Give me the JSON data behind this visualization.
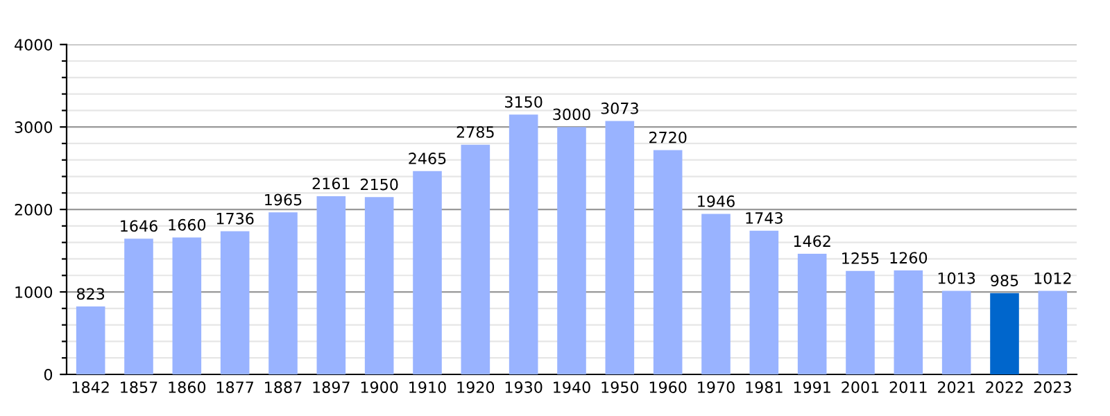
{
  "chart_data": {
    "type": "bar",
    "categories": [
      "1842",
      "1857",
      "1860",
      "1877",
      "1887",
      "1897",
      "1900",
      "1910",
      "1920",
      "1930",
      "1940",
      "1950",
      "1960",
      "1970",
      "1981",
      "1991",
      "2001",
      "2011",
      "2021",
      "2022",
      "2023"
    ],
    "values": [
      823,
      1646,
      1660,
      1736,
      1965,
      2161,
      2150,
      2465,
      2785,
      3150,
      3000,
      3073,
      2720,
      1946,
      1743,
      1462,
      1255,
      1260,
      1013,
      985,
      1012
    ],
    "colors": [
      "#99b3ff",
      "#99b3ff",
      "#99b3ff",
      "#99b3ff",
      "#99b3ff",
      "#99b3ff",
      "#99b3ff",
      "#99b3ff",
      "#99b3ff",
      "#99b3ff",
      "#99b3ff",
      "#99b3ff",
      "#99b3ff",
      "#99b3ff",
      "#99b3ff",
      "#99b3ff",
      "#99b3ff",
      "#99b3ff",
      "#99b3ff",
      "#0066cc",
      "#99b3ff"
    ],
    "ylim": [
      0,
      4000
    ],
    "yticks": [
      0,
      {
        "value": 200,
        "label": null
      },
      {
        "value": 400,
        "label": null
      },
      {
        "value": 600,
        "label": null
      },
      {
        "value": 800,
        "label": null
      },
      1000,
      {
        "value": 1200,
        "label": null
      },
      {
        "value": 1400,
        "label": null
      },
      {
        "value": 1600,
        "label": null
      },
      {
        "value": 1800,
        "label": null
      },
      2000,
      {
        "value": 2200,
        "label": null
      },
      {
        "value": 2400,
        "label": null
      },
      {
        "value": 2600,
        "label": null
      },
      {
        "value": 2800,
        "label": null
      },
      3000,
      {
        "value": 3200,
        "label": null
      },
      {
        "value": 3400,
        "label": null
      },
      {
        "value": 3600,
        "label": null
      },
      {
        "value": 3800,
        "label": null
      },
      4000
    ],
    "grid": "y",
    "data_labels": true
  }
}
